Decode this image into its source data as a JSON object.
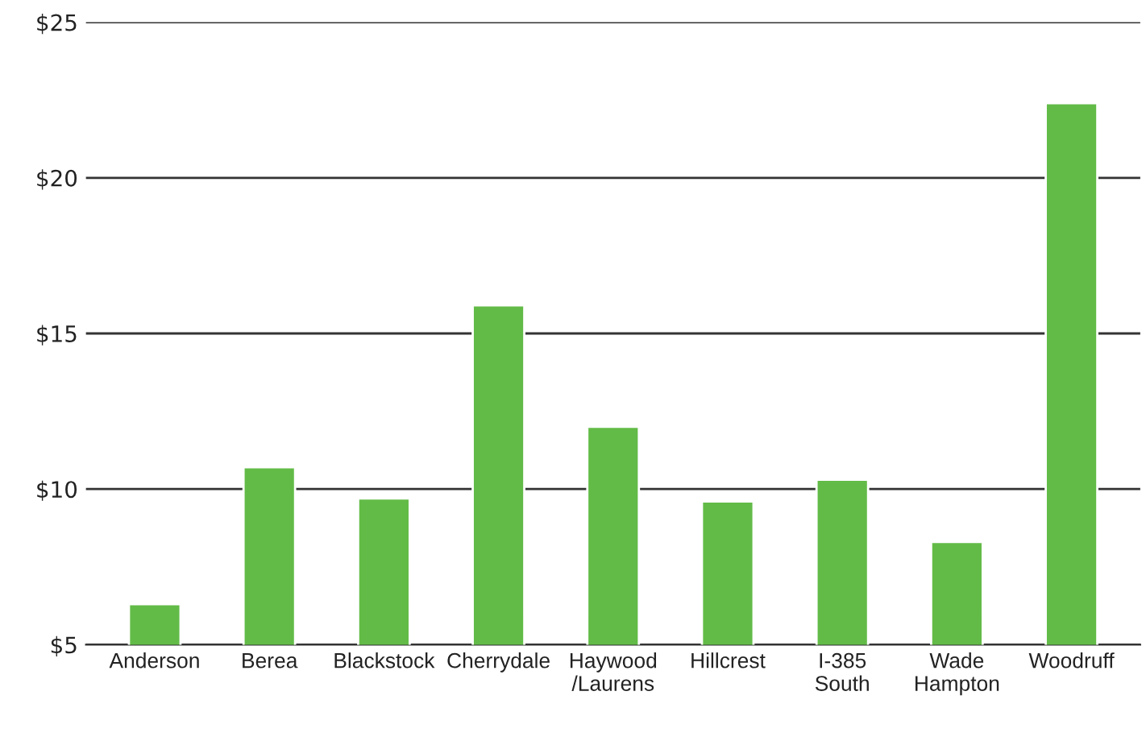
{
  "chart_data": {
    "type": "bar",
    "categories": [
      "Anderson",
      "Berea",
      "Blackstock",
      "Cherrydale",
      "Haywood\n/Laurens",
      "Hillcrest",
      "I-385\nSouth",
      "Wade\nHampton",
      "Woodruff"
    ],
    "values": [
      6.3,
      10.7,
      9.7,
      15.9,
      12.0,
      9.6,
      10.3,
      8.3,
      22.4
    ],
    "color": "#62bb47",
    "ylim": [
      5,
      25
    ],
    "yticks": [
      {
        "value": 5,
        "label": "$5"
      },
      {
        "value": 10,
        "label": "$10"
      },
      {
        "value": 15,
        "label": "$15"
      },
      {
        "value": 20,
        "label": "$20"
      },
      {
        "value": 25,
        "label": "$25"
      }
    ],
    "grid": "y"
  }
}
